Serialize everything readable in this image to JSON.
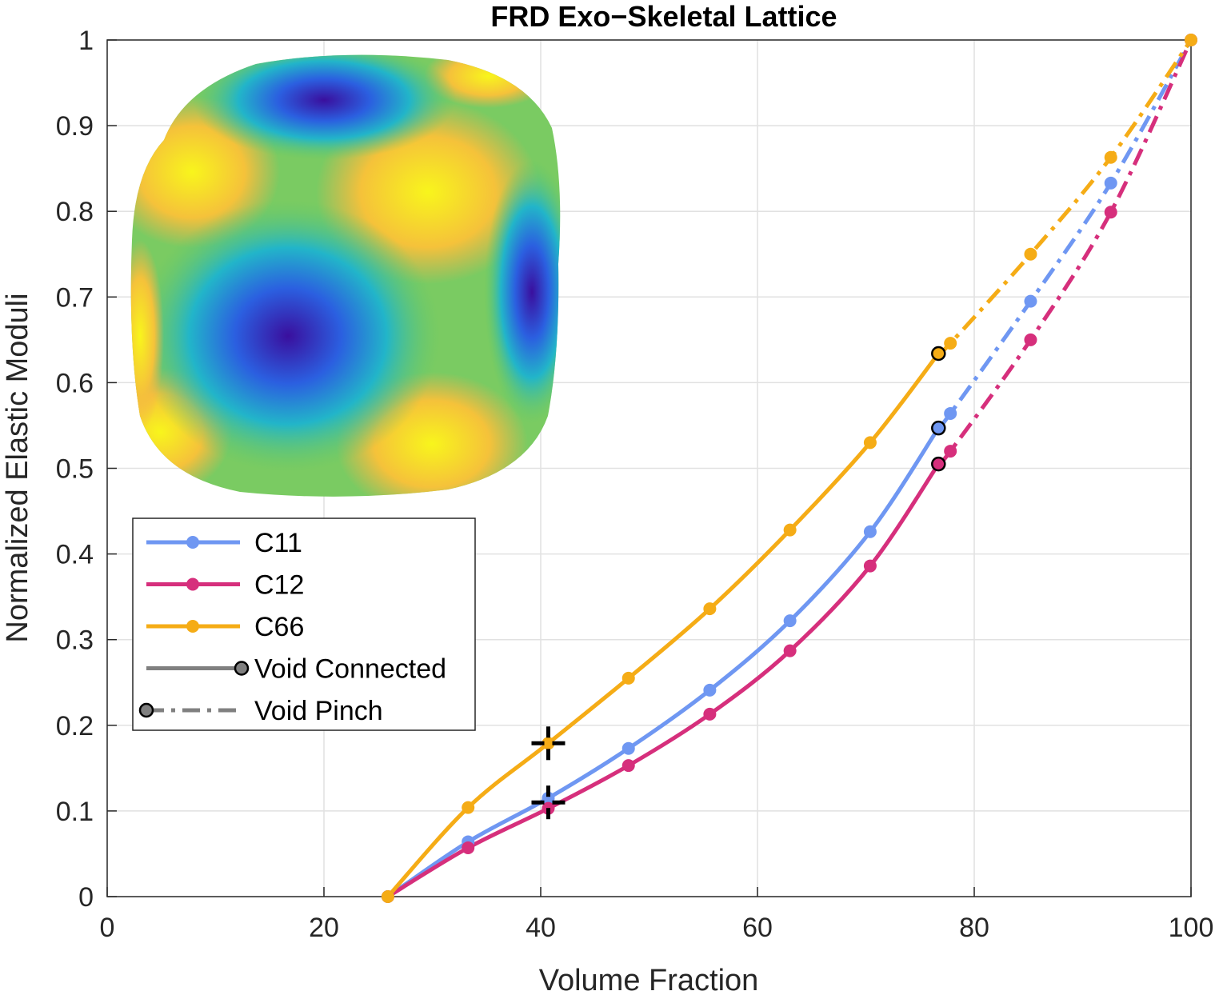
{
  "chart_data": {
    "type": "line",
    "title": "FRD Exo−Skeletal Lattice",
    "xlabel": "Volume Fraction",
    "ylabel": "Normalized Elastic Moduli",
    "xlim": [
      0,
      100
    ],
    "ylim": [
      0,
      1
    ],
    "x_ticks": [
      "0",
      "20",
      "40",
      "60",
      "80",
      "100"
    ],
    "y_ticks": [
      "0",
      "0.1",
      "0.2",
      "0.3",
      "0.4",
      "0.5",
      "0.6",
      "0.7",
      "0.8",
      "0.9",
      "1"
    ],
    "grid": true,
    "legend_position": "middle-left",
    "series": [
      {
        "name": "C11",
        "color": "#6f97f2",
        "connected": {
          "x": [
            25.9,
            33.3,
            40.7,
            48.1,
            55.6,
            63.0,
            70.4,
            76.7
          ],
          "y": [
            0,
            0.064,
            0.115,
            0.173,
            0.241,
            0.322,
            0.426,
            0.547
          ]
        },
        "pinch": {
          "x": [
            76.7,
            77.8,
            85.2,
            92.6,
            100
          ],
          "y": [
            0.547,
            0.564,
            0.695,
            0.833,
            1.0
          ]
        }
      },
      {
        "name": "C12",
        "color": "#d62f7c",
        "connected": {
          "x": [
            25.9,
            33.3,
            40.7,
            48.1,
            55.6,
            63.0,
            70.4,
            76.7
          ],
          "y": [
            0,
            0.057,
            0.103,
            0.153,
            0.213,
            0.287,
            0.386,
            0.505
          ]
        },
        "pinch": {
          "x": [
            76.7,
            77.8,
            85.2,
            92.6,
            100
          ],
          "y": [
            0.505,
            0.52,
            0.65,
            0.799,
            1.0
          ]
        }
      },
      {
        "name": "C66",
        "color": "#f5ac16",
        "connected": {
          "x": [
            25.9,
            33.3,
            40.7,
            48.1,
            55.6,
            63.0,
            70.4,
            76.7
          ],
          "y": [
            0,
            0.104,
            0.179,
            0.255,
            0.336,
            0.428,
            0.53,
            0.634
          ]
        },
        "pinch": {
          "x": [
            76.7,
            77.8,
            85.2,
            92.6,
            100
          ],
          "y": [
            0.634,
            0.646,
            0.75,
            0.863,
            1.0
          ]
        }
      }
    ],
    "pinch_markers": [
      {
        "series": "C66",
        "x": 76.7,
        "y": 0.634
      },
      {
        "series": "C11",
        "x": 76.7,
        "y": 0.547
      },
      {
        "series": "C12",
        "x": 76.7,
        "y": 0.505
      }
    ],
    "cross_markers": [
      {
        "x": 40.7,
        "y": 0.179
      },
      {
        "x": 40.7,
        "y": 0.11
      }
    ],
    "legend": [
      {
        "label": "C11",
        "style": "line-dot",
        "color": "#6f97f2"
      },
      {
        "label": "C12",
        "style": "line-dot",
        "color": "#d62f7c"
      },
      {
        "label": "C66",
        "style": "line-dot",
        "color": "#f5ac16"
      },
      {
        "label": "Void Connected",
        "style": "solid-end-circle",
        "color": "#808080"
      },
      {
        "label": "Void Pinch",
        "style": "dashed-start-circle",
        "color": "#808080"
      }
    ],
    "inset": {
      "description_icon": "lattice-surface-cube",
      "colormap": [
        "#3a0f9e",
        "#2b6fe6",
        "#22b5c9",
        "#5cc86a",
        "#f5b04a",
        "#f8f51c"
      ]
    }
  }
}
